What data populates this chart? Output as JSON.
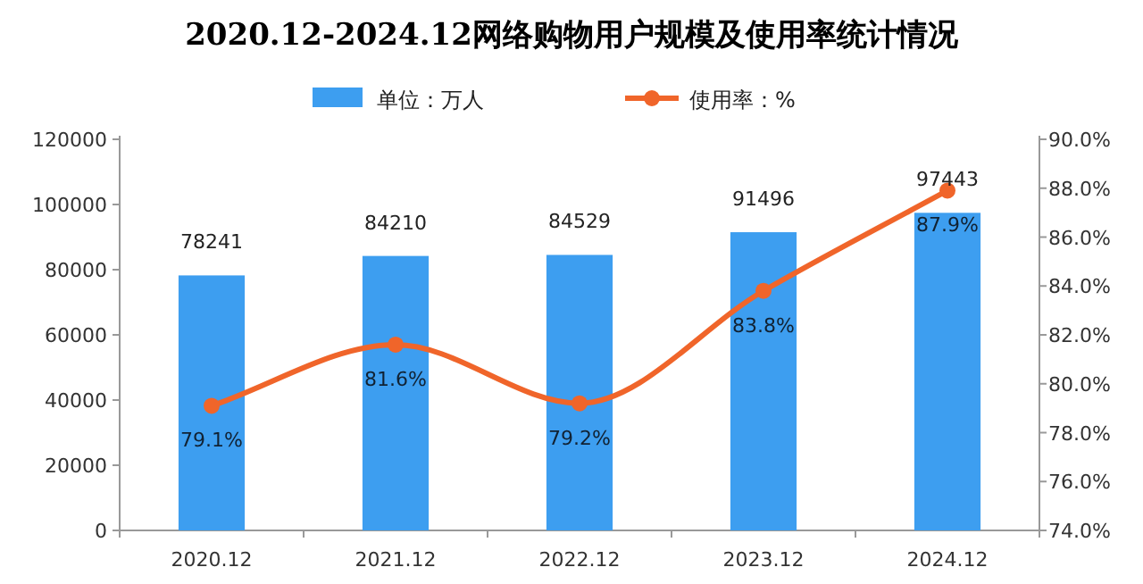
{
  "chart_data": {
    "type": "bar",
    "title": "2020.12-2024.12网络购物用户规模及使用率统计情况",
    "categories": [
      "2020.12",
      "2021.12",
      "2022.12",
      "2023.12",
      "2024.12"
    ],
    "series": [
      {
        "name": "单位：万人",
        "color": "#3d9ef0",
        "values": [
          78241,
          84210,
          84529,
          91496,
          97443
        ],
        "value_labels": [
          "78241",
          "84210",
          "84529",
          "91496",
          "97443"
        ]
      },
      {
        "name": "使用率：%",
        "type": "line",
        "axis": "y2",
        "color": "#f0652a",
        "marker": "circle",
        "values": [
          79.1,
          81.6,
          79.2,
          83.8,
          87.9
        ],
        "value_labels": [
          "79.1%",
          "81.6%",
          "79.2%",
          "83.8%",
          "87.9%"
        ]
      }
    ],
    "ylim": [
      0,
      120000
    ],
    "yticks": [
      0,
      20000,
      40000,
      60000,
      80000,
      100000,
      120000
    ],
    "y2lim": [
      74,
      90
    ],
    "y2ticks": [
      {
        "value": 74,
        "label": "74.0%"
      },
      {
        "value": 76,
        "label": "76.0%"
      },
      {
        "value": 78,
        "label": "78.0%"
      },
      {
        "value": 80,
        "label": "80.0%"
      },
      {
        "value": 82,
        "label": "82.0%"
      },
      {
        "value": 84,
        "label": "84.0%"
      },
      {
        "value": 86,
        "label": "86.0%"
      },
      {
        "value": 88,
        "label": "88.0%"
      },
      {
        "value": 90,
        "label": "90.0%"
      }
    ],
    "legend": "top",
    "grid": false
  }
}
